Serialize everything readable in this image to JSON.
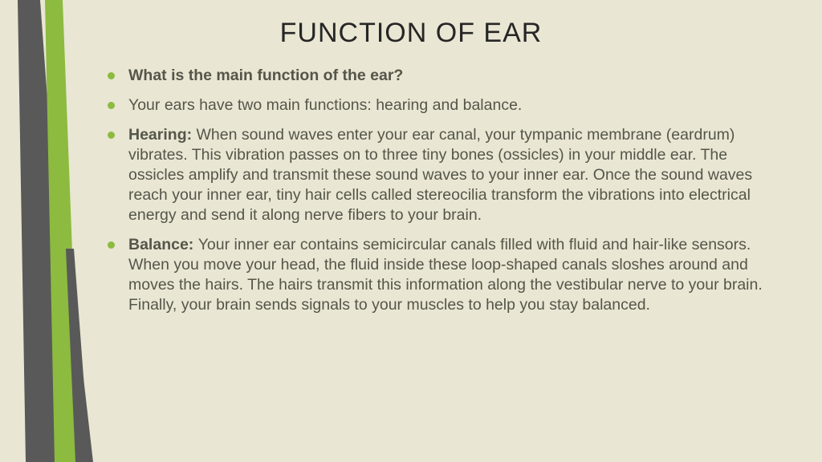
{
  "colors": {
    "background": "#e9e6d3",
    "title_text": "#262626",
    "body_text": "#555549",
    "bullet": "#8cbb3f",
    "stripe_dark": "#595959",
    "stripe_green": "#8cbb3f",
    "stripe_light": "#e9e6d3"
  },
  "typography": {
    "title_fontsize": 34,
    "body_fontsize": 19.5,
    "line_height": 1.28
  },
  "title": "FUNCTION OF EAR",
  "bullets": [
    {
      "bold": "What is the main function of the ear?",
      "rest": ""
    },
    {
      "bold": "",
      "rest": "Your ears have two main functions: hearing and balance."
    },
    {
      "bold": "Hearing: ",
      "rest": "When sound waves enter your ear canal, your tympanic membrane (eardrum) vibrates. This vibration passes on to three tiny bones (ossicles) in your middle ear. The ossicles amplify and transmit these sound waves to your inner ear. Once the sound waves reach your inner ear, tiny hair cells called stereocilia transform the vibrations into electrical energy and send it along nerve fibers to your brain."
    },
    {
      "bold": "Balance: ",
      "rest": "Your inner ear contains semicircular canals filled with fluid and hair-like sensors. When you move your head, the fluid inside these loop-shaped canals sloshes around and moves the hairs. The hairs transmit this information along the vestibular nerve to your brain. Finally, your brain sends signals to your muscles to help you stay balanced."
    }
  ]
}
